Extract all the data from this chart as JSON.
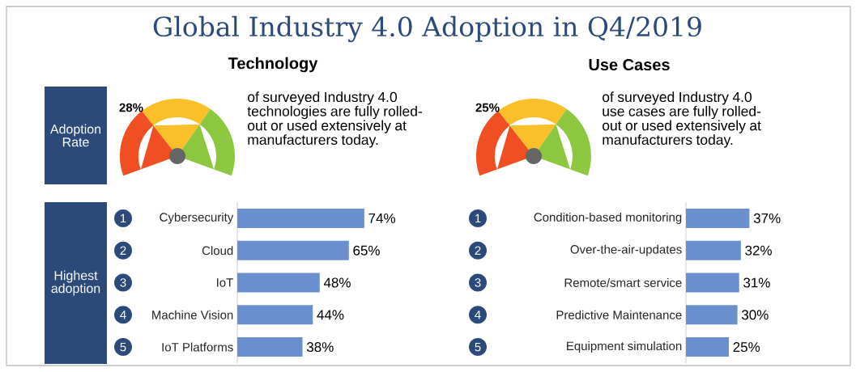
{
  "chart_data": [
    {
      "type": "other",
      "title": "Global Industry 4.0 Adoption in Q4/2019",
      "annotations": [
        "Adoption Rate",
        "Highest adoption"
      ]
    },
    {
      "type": "other",
      "title": "Technology",
      "annotations": [
        "28%",
        "of surveyed Industry 4.0 technologies are fully rolled-out or used extensively at manufacturers today."
      ]
    },
    {
      "type": "bar",
      "orientation": "horizontal",
      "categories": [
        "Cybersecurity",
        "Cloud",
        "IoT",
        "Machine Vision",
        "IoT Platforms"
      ],
      "values": [
        74,
        65,
        48,
        44,
        38
      ],
      "value_labels": [
        "74%",
        "65%",
        "48%",
        "44%",
        "38%"
      ],
      "color": "#6a8fcf",
      "annotations": [
        "1",
        "2",
        "3",
        "4",
        "5"
      ]
    },
    {
      "type": "other",
      "title": "Use Cases",
      "annotations": [
        "25%",
        "of surveyed Industry 4.0 use cases are fully rolled-out or used extensively at manufacturers today."
      ]
    },
    {
      "type": "bar",
      "orientation": "horizontal",
      "categories": [
        "Condition-based monitoring",
        "Over-the-air-updates",
        "Remote/smart service",
        "Predictive Maintenance",
        "Equipment simulation"
      ],
      "values": [
        37,
        32,
        31,
        30,
        25
      ],
      "value_labels": [
        "37%",
        "32%",
        "31%",
        "30%",
        "25%"
      ],
      "color": "#6a8fcf",
      "annotations": [
        "1",
        "2",
        "3",
        "4",
        "5"
      ]
    }
  ]
}
